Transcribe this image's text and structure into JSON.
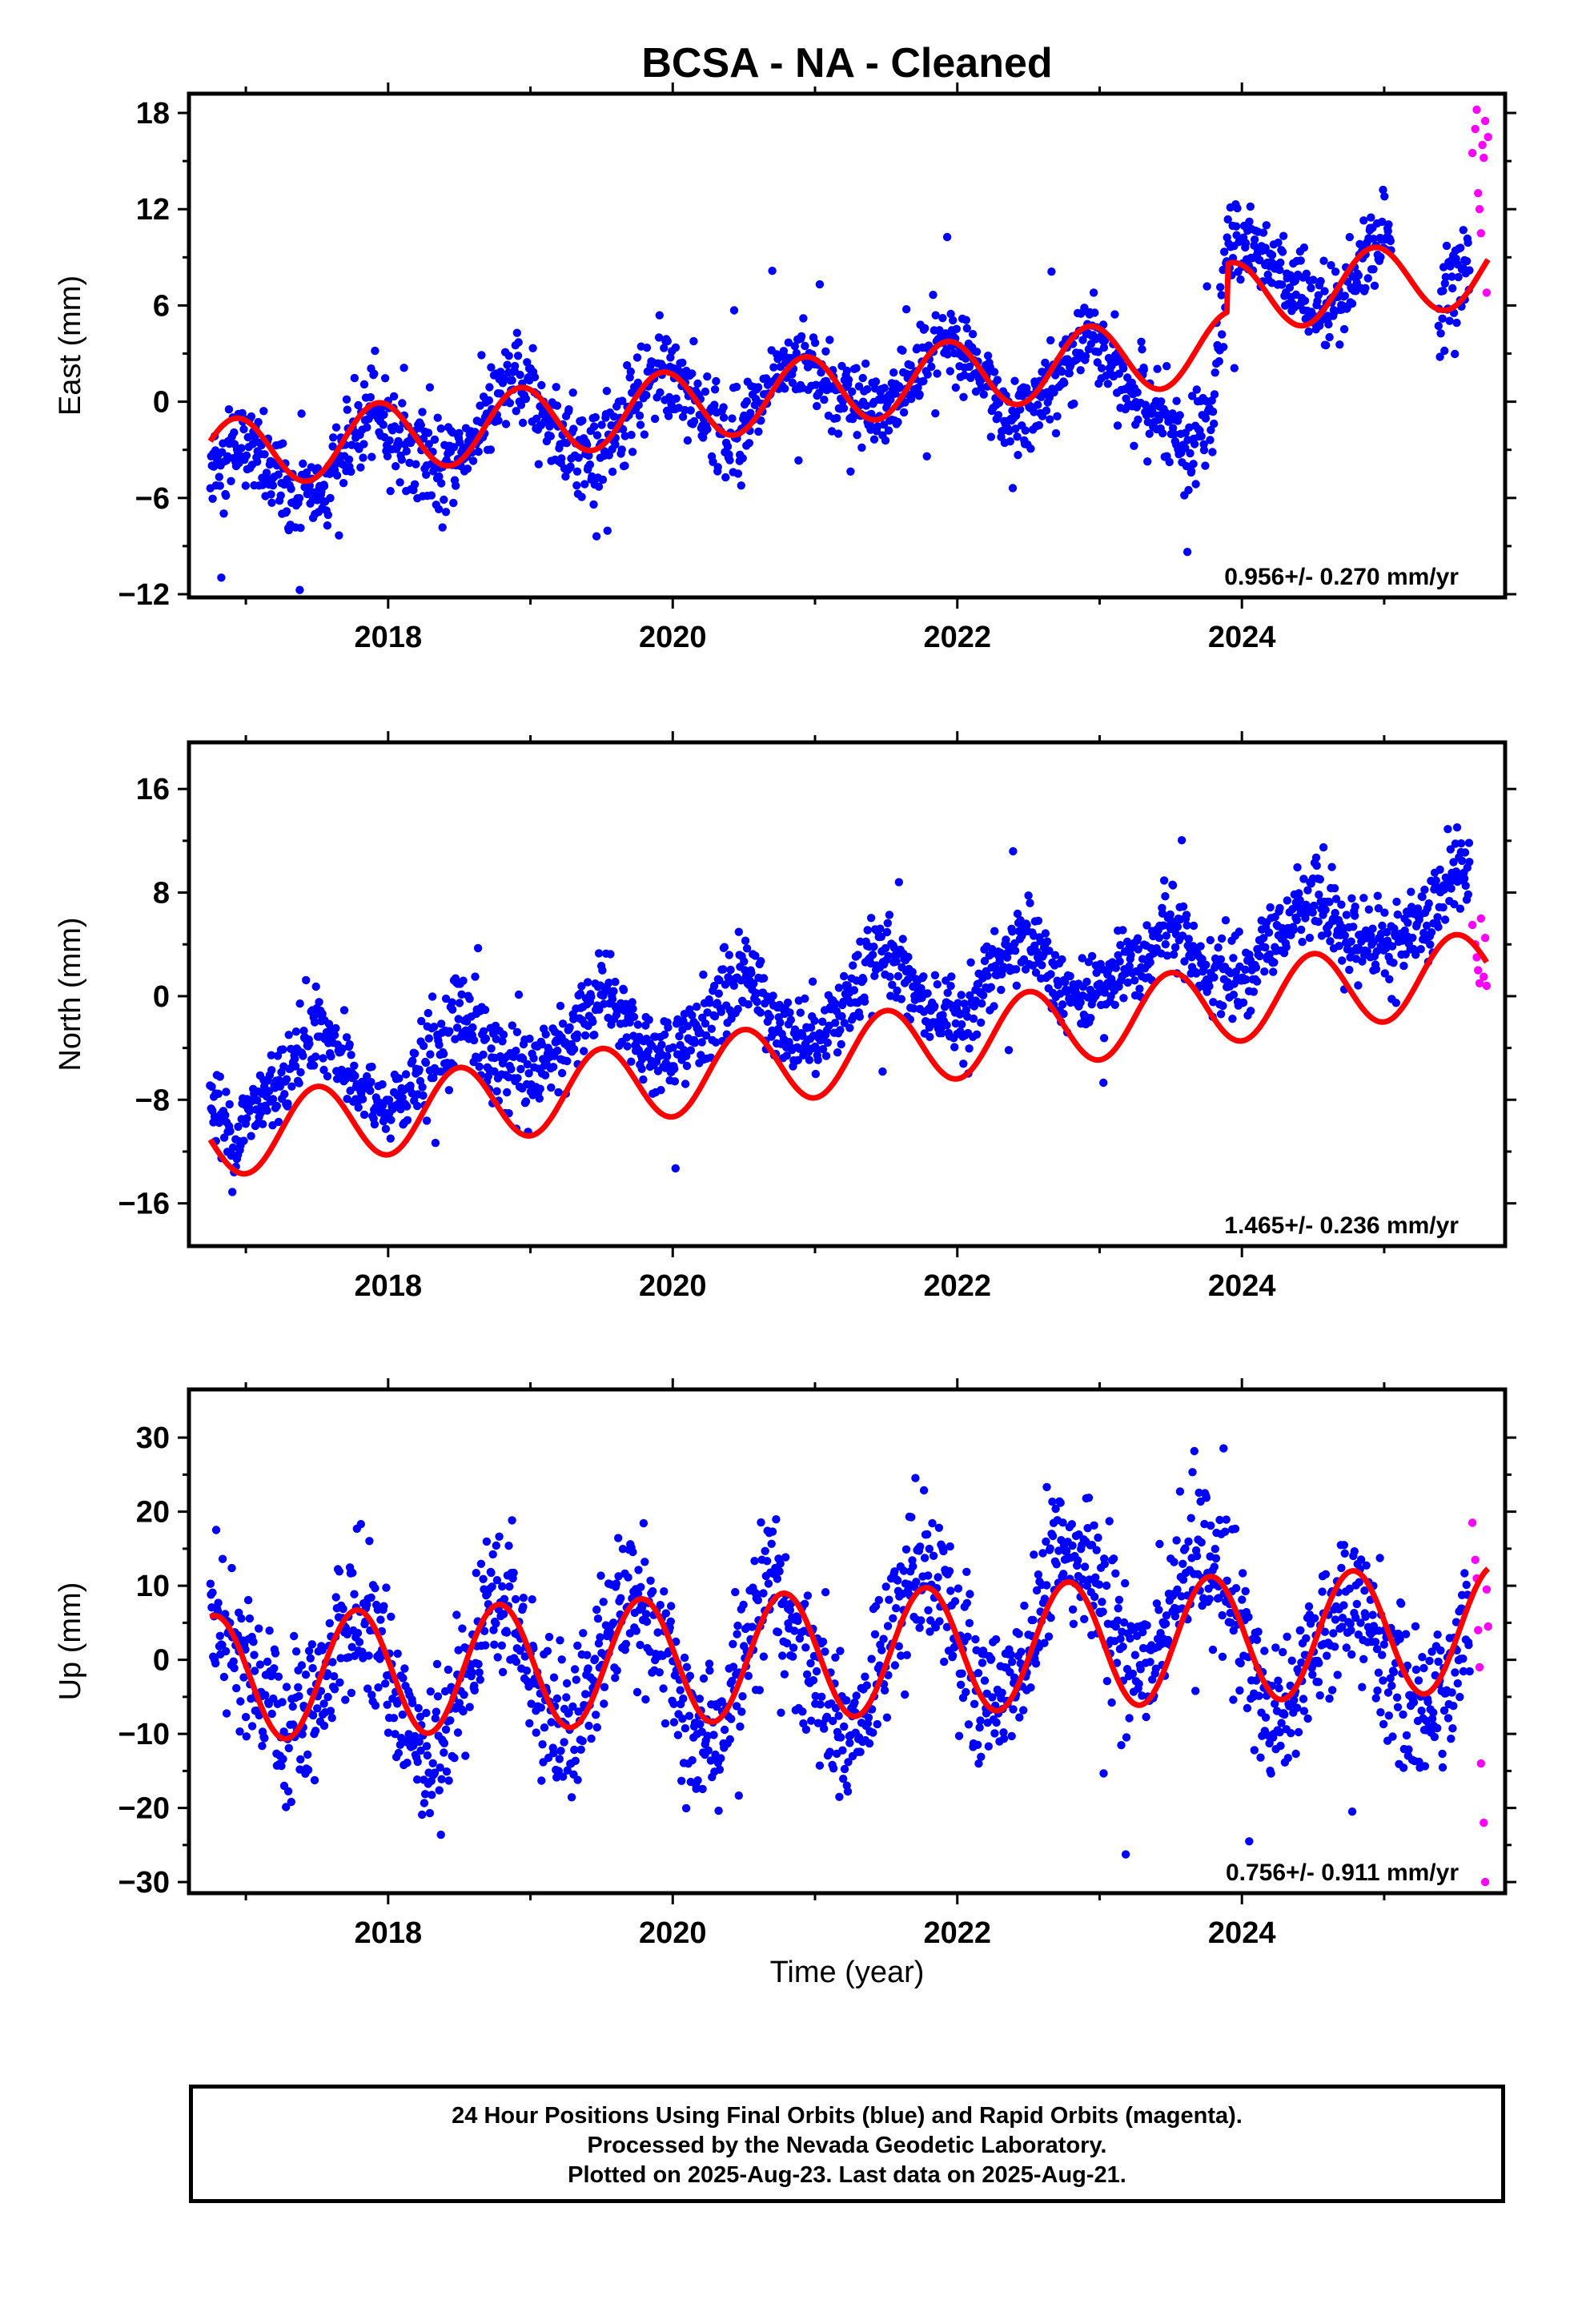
{
  "title": "BCSA  - NA - Cleaned",
  "x_axis_label": "Time (year)",
  "colors": {
    "final": "#0000ff",
    "rapid": "#ff00ff",
    "model": "#ff0000"
  },
  "footer": [
    "24 Hour Positions Using Final Orbits (blue) and Rapid Orbits (magenta).",
    "Processed by the Nevada Geodetic Laboratory.",
    "Plotted on 2025-Aug-23. Last data on 2025-Aug-21."
  ],
  "chart_data": [
    {
      "type": "scatter",
      "ylabel": "East (mm)",
      "xlim": [
        2016.6,
        2025.85
      ],
      "ylim": [
        -12.2,
        19.2
      ],
      "yticks": [
        -12,
        -6,
        0,
        6,
        12,
        18
      ],
      "xticks": [
        2018,
        2020,
        2022,
        2024
      ],
      "rate_label": "0.956+/- 0.270 mm/yr",
      "model": {
        "offset": -3.45,
        "rate": 0.956,
        "amp": 2.2,
        "peak": 0.93,
        "ref_year": 2016.7,
        "steps": [
          [
            2023.9,
            3.0
          ]
        ]
      },
      "series": [
        {
          "orbits": "final",
          "scatter_sd": 1.35,
          "x": [
            2016.75,
            2017.0,
            2017.3,
            2017.5,
            2017.7,
            2017.9,
            2018.1,
            2018.4,
            2018.7,
            2018.9,
            2019.1,
            2019.4,
            2019.7,
            2019.9,
            2020.1,
            2020.4,
            2020.7,
            2020.9,
            2021.1,
            2021.4,
            2021.7,
            2021.9,
            2022.1,
            2022.4,
            2022.7,
            2022.9,
            2023.1,
            2023.4,
            2023.6,
            2023.8,
            2023.9,
            2024.1,
            2024.3,
            2024.5,
            2024.7,
            2024.9,
            2025.1,
            2025.35,
            2025.5,
            2025.6
          ],
          "y": [
            -4.0,
            -2.5,
            -6.0,
            -5.8,
            -3.0,
            -0.5,
            -2.5,
            -4.5,
            -1.0,
            1.5,
            -1.0,
            -3.5,
            -1.0,
            2.0,
            0.5,
            -2.5,
            0.5,
            3.0,
            1.0,
            -1.0,
            1.5,
            4.0,
            2.0,
            -1.0,
            1.0,
            4.5,
            2.0,
            -1.0,
            -3.0,
            0.0,
            9.5,
            10.0,
            8.0,
            5.0,
            6.0,
            10.0,
            10.5,
            5.5,
            7.5,
            9.0
          ]
        },
        {
          "orbits": "rapid",
          "x": [
            2025.62,
            2025.64,
            2025.65,
            2025.66,
            2025.67,
            2025.68,
            2025.69,
            2025.7,
            2025.71,
            2025.72,
            2025.73
          ],
          "y": [
            15.5,
            17.0,
            18.2,
            13.0,
            12.0,
            10.5,
            16.0,
            15.2,
            17.5,
            6.8,
            16.5
          ]
        }
      ]
    },
    {
      "type": "scatter",
      "ylabel": "North (mm)",
      "xlim": [
        2016.6,
        2025.85
      ],
      "ylim": [
        -19.3,
        19.6
      ],
      "yticks": [
        -16,
        -8,
        0,
        8,
        16
      ],
      "xticks": [
        2018,
        2020,
        2022,
        2024
      ],
      "rate_label": "1.465+/- 0.236 mm/yr",
      "model": {
        "offset": -11.15,
        "rate": 1.465,
        "amp": 3.0,
        "peak": 0.5,
        "ref_year": 2016.7,
        "steps": []
      },
      "series": [
        {
          "orbits": "final",
          "scatter_sd": 1.6,
          "x": [
            2016.75,
            2016.9,
            2017.2,
            2017.5,
            2017.8,
            2018.0,
            2018.3,
            2018.5,
            2018.8,
            2019.0,
            2019.3,
            2019.5,
            2019.8,
            2020.0,
            2020.3,
            2020.5,
            2020.8,
            2021.0,
            2021.3,
            2021.5,
            2021.8,
            2022.0,
            2022.3,
            2022.5,
            2022.8,
            2023.0,
            2023.3,
            2023.5,
            2023.8,
            2024.0,
            2024.3,
            2024.5,
            2024.8,
            2025.0,
            2025.3,
            2025.5,
            2025.6
          ],
          "y": [
            -8.0,
            -11.0,
            -7.0,
            -2.0,
            -7.0,
            -9.0,
            -5.0,
            -1.0,
            -6.0,
            -6.0,
            -3.0,
            1.0,
            -4.0,
            -5.0,
            -1.0,
            2.0,
            -3.0,
            -3.0,
            0.5,
            4.0,
            -1.0,
            -2.0,
            2.0,
            5.0,
            0.0,
            1.0,
            3.0,
            6.0,
            2.0,
            1.5,
            5.0,
            8.0,
            4.0,
            3.0,
            6.0,
            10.0,
            9.0
          ]
        },
        {
          "orbits": "rapid",
          "x": [
            2025.62,
            2025.64,
            2025.65,
            2025.66,
            2025.67,
            2025.68,
            2025.7,
            2025.71,
            2025.72
          ],
          "y": [
            5.5,
            4.0,
            3.0,
            2.0,
            1.0,
            6.0,
            1.5,
            4.5,
            0.8
          ]
        }
      ]
    },
    {
      "type": "scatter",
      "ylabel": "Up (mm)",
      "xlim": [
        2016.6,
        2025.85
      ],
      "ylim": [
        -31.5,
        36.5
      ],
      "yticks": [
        -30,
        -20,
        -10,
        0,
        10,
        20,
        30
      ],
      "xticks": [
        2018,
        2020,
        2022,
        2024
      ],
      "rate_label": "0.756+/- 0.911 mm/yr",
      "model": {
        "offset": -2.6,
        "rate": 0.756,
        "amp": 8.5,
        "peak": 0.78,
        "ref_year": 2016.7,
        "steps": []
      },
      "series": [
        {
          "orbits": "final",
          "scatter_sd": 5.0,
          "x": [
            2016.75,
            2016.9,
            2017.1,
            2017.3,
            2017.5,
            2017.7,
            2017.9,
            2018.1,
            2018.3,
            2018.5,
            2018.7,
            2018.9,
            2019.1,
            2019.3,
            2019.5,
            2019.7,
            2019.9,
            2020.1,
            2020.3,
            2020.5,
            2020.7,
            2020.9,
            2021.1,
            2021.3,
            2021.5,
            2021.7,
            2021.9,
            2022.1,
            2022.3,
            2022.5,
            2022.7,
            2022.9,
            2023.1,
            2023.3,
            2023.5,
            2023.7,
            2023.9,
            2024.1,
            2024.3,
            2024.5,
            2024.7,
            2024.9,
            2025.1,
            2025.3,
            2025.5,
            2025.6
          ],
          "y": [
            5.0,
            3.0,
            -5.0,
            -12.0,
            -6.0,
            6.0,
            5.0,
            -8.0,
            -14.0,
            -5.0,
            9.0,
            6.0,
            -7.0,
            -10.0,
            2.0,
            9.0,
            4.0,
            -10.0,
            -12.0,
            1.0,
            10.0,
            3.0,
            -8.0,
            -10.0,
            2.0,
            12.0,
            12.0,
            -4.0,
            -6.0,
            3.0,
            15.0,
            14.0,
            4.0,
            -2.0,
            7.0,
            15.0,
            10.0,
            -4.0,
            -8.0,
            2.0,
            7.0,
            5.0,
            -4.0,
            -8.0,
            0.0,
            6.0
          ]
        },
        {
          "orbits": "rapid",
          "x": [
            2025.62,
            2025.64,
            2025.65,
            2025.66,
            2025.67,
            2025.68,
            2025.7,
            2025.71,
            2025.72,
            2025.73
          ],
          "y": [
            18.5,
            13.5,
            11.0,
            4.0,
            -1.0,
            -14.0,
            -22.0,
            -30.0,
            9.5,
            4.5
          ]
        }
      ]
    }
  ]
}
